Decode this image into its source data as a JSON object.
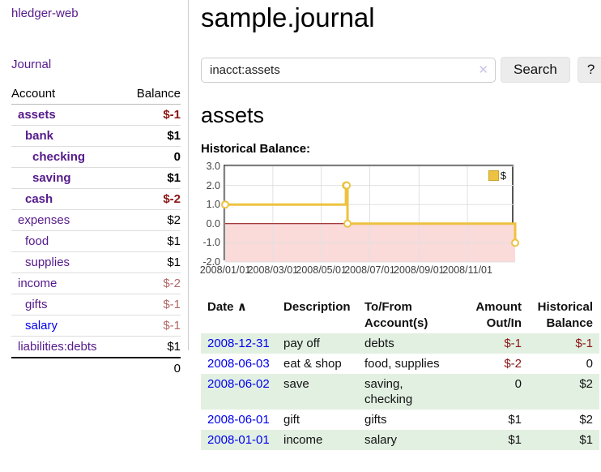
{
  "app": {
    "brand": "hledger-web",
    "nav_journal": "Journal"
  },
  "sidebar": {
    "columns": {
      "account": "Account",
      "balance": "Balance"
    },
    "rows": [
      {
        "account": "assets",
        "balance": "$-1"
      },
      {
        "account": "bank",
        "balance": "$1"
      },
      {
        "account": "checking",
        "balance": "0"
      },
      {
        "account": "saving",
        "balance": "$1"
      },
      {
        "account": "cash",
        "balance": "$-2"
      },
      {
        "account": "expenses",
        "balance": "$2"
      },
      {
        "account": "food",
        "balance": "$1"
      },
      {
        "account": "supplies",
        "balance": "$1"
      },
      {
        "account": "income",
        "balance": "$-2"
      },
      {
        "account": "gifts",
        "balance": "$-1"
      },
      {
        "account": "salary",
        "balance": "$-1"
      },
      {
        "account": "liabilities:debts",
        "balance": "$1"
      }
    ],
    "total": "0"
  },
  "main": {
    "title": "sample.journal",
    "search": {
      "query": "inacct:assets",
      "clear_icon": "✕",
      "button": "Search",
      "help": "?"
    },
    "account_heading": "assets",
    "chart_title": "Historical Balance:"
  },
  "chart_data": {
    "type": "line",
    "step": true,
    "title": "Historical Balance",
    "legend": "$",
    "legend_position": "top-right",
    "series": [
      {
        "name": "$",
        "points": [
          [
            "2008-01-01",
            1
          ],
          [
            "2008-06-01",
            2
          ],
          [
            "2008-06-02",
            2
          ],
          [
            "2008-06-03",
            0
          ],
          [
            "2008-12-31",
            -1
          ]
        ]
      }
    ],
    "ylim": [
      -2.0,
      3.0
    ],
    "yticks": [
      3,
      2,
      1,
      0,
      -1,
      -2
    ],
    "xlim": [
      "2008-01-01",
      "2008-12-31"
    ],
    "xticks": [
      "2008/01/01",
      "2008/03/01",
      "2008/05/01",
      "2008/07/01",
      "2008/09/01",
      "2008/11/01"
    ],
    "grid": true,
    "colors": {
      "line": "#edc240",
      "marker_fill": "#ffffff",
      "negative_fill": "#fbdada",
      "zero_line": "#8b0000",
      "grid": "#e0e0e0",
      "border": "#555555"
    }
  },
  "register": {
    "headers": {
      "date": "Date",
      "description": "Description",
      "accounts": "To/From Account(s)",
      "amount": "Amount Out/In",
      "balance": "Historical Balance"
    },
    "sort_icon": "∧",
    "rows": [
      {
        "date": "2008-12-31",
        "description": "pay off",
        "accounts": "debts",
        "amount": "$-1",
        "balance": "$-1"
      },
      {
        "date": "2008-06-03",
        "description": "eat & shop",
        "accounts": "food, supplies",
        "amount": "$-2",
        "balance": "0"
      },
      {
        "date": "2008-06-02",
        "description": "save",
        "accounts": "saving,\nchecking",
        "amount": "0",
        "balance": "$2"
      },
      {
        "date": "2008-06-01",
        "description": "gift",
        "accounts": "gifts",
        "amount": "$1",
        "balance": "$2"
      },
      {
        "date": "2008-01-01",
        "description": "income",
        "accounts": "salary",
        "amount": "$1",
        "balance": "$1"
      }
    ]
  }
}
